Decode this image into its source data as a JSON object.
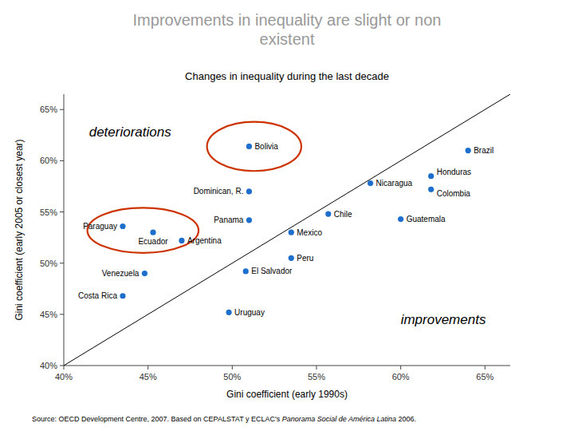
{
  "chart_data": {
    "type": "scatter",
    "title": "Improvements in inequality are slight or non\nexistent",
    "title_color": "#999999",
    "subtitle": "Changes in inequality during the last decade",
    "subtitle_color": "#000000",
    "x_label": "Gini coefficient (early 1990s)",
    "y_label": "Gini coefficient (early 2005 or closest year)",
    "color": "#1e6fcc",
    "xlim": [
      0.4,
      0.665
    ],
    "ylim": [
      0.4,
      0.665
    ],
    "xticks": [
      {
        "value": 0.4,
        "label": "40%"
      },
      {
        "value": 0.45,
        "label": "45%"
      },
      {
        "value": 0.5,
        "label": "50%"
      },
      {
        "value": 0.55,
        "label": "55%"
      },
      {
        "value": 0.6,
        "label": "60%"
      },
      {
        "value": 0.65,
        "label": "65%"
      }
    ],
    "yticks": [
      {
        "value": 0.4,
        "label": "40%"
      },
      {
        "value": 0.45,
        "label": "45%"
      },
      {
        "value": 0.5,
        "label": "50%"
      },
      {
        "value": 0.55,
        "label": "55%"
      },
      {
        "value": 0.6,
        "label": "60%"
      },
      {
        "value": 0.65,
        "label": "65%"
      }
    ],
    "grid": false,
    "labels": [
      "Bolivia",
      "Brazil",
      "Honduras",
      "Colombia",
      "Nicaragua",
      "Dominican, R.",
      "Chile",
      "Guatemala",
      "Panama",
      "Paraguay",
      "Ecuador",
      "Mexico",
      "Argentina",
      "Peru",
      "El Salvador",
      "Venezuela",
      "Costa Rica",
      "Uruguay"
    ],
    "x": [
      0.51,
      0.64,
      0.618,
      0.618,
      0.582,
      0.51,
      0.557,
      0.6,
      0.51,
      0.435,
      0.453,
      0.535,
      0.47,
      0.535,
      0.508,
      0.448,
      0.435,
      0.498
    ],
    "values": [
      0.614,
      0.61,
      0.585,
      0.572,
      0.578,
      0.57,
      0.548,
      0.543,
      0.542,
      0.536,
      0.53,
      0.53,
      0.522,
      0.505,
      0.492,
      0.49,
      0.468,
      0.452
    ],
    "reference_line": {
      "x": [
        0.4,
        0.665
      ],
      "y": [
        0.4,
        0.665
      ]
    },
    "ellipses": [
      {
        "cx": 0.513,
        "cy": 0.614,
        "rx": 0.028,
        "ry": 0.024,
        "color": "#cc3300"
      },
      {
        "cx": 0.447,
        "cy": 0.532,
        "rx": 0.033,
        "ry": 0.022,
        "color": "#cc3300"
      }
    ],
    "annotations": [
      {
        "text": "deteriorations",
        "x": 0.415,
        "y": 0.628
      },
      {
        "text": "improvements",
        "x": 0.6,
        "y": 0.445
      }
    ],
    "source": [
      {
        "text": "Source: OECD Development Centre, 2007. Based on CEPALSTAT y ECLAC's ",
        "style": "normal"
      },
      {
        "text": "Panorama Social de América Latina",
        "style": "italic"
      },
      {
        "text": " 2006.",
        "style": "normal"
      }
    ]
  }
}
